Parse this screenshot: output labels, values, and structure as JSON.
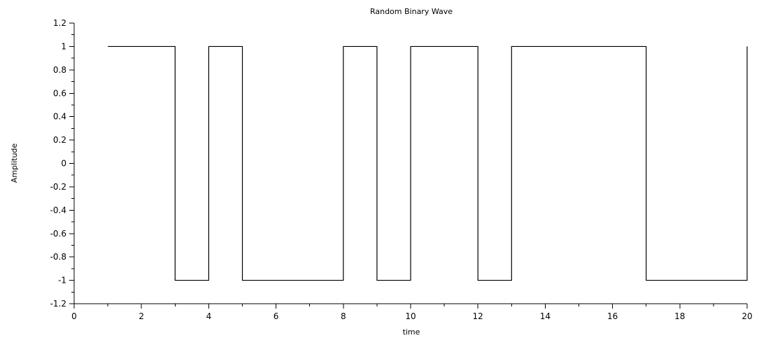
{
  "chart_data": {
    "type": "line",
    "step": true,
    "title": "Random Binary Wave",
    "xlabel": "time",
    "ylabel": "Amplitude",
    "xlim": [
      0,
      20
    ],
    "ylim": [
      -1.2,
      1.2
    ],
    "grid": false,
    "x_ticks": [
      "0",
      "2",
      "4",
      "6",
      "8",
      "10",
      "12",
      "14",
      "16",
      "18",
      "20"
    ],
    "y_ticks": [
      "1.2",
      "1",
      "0.8",
      "0.6",
      "0.4",
      "0.2",
      "0",
      "-0.2",
      "-0.4",
      "-0.6",
      "-0.8",
      "-1",
      "-1.2"
    ],
    "series": [
      {
        "color": "#000000",
        "x": [
          1,
          3,
          3,
          4,
          4,
          5,
          5,
          8,
          8,
          9,
          9,
          10,
          10,
          12,
          12,
          13,
          13,
          17,
          17,
          20,
          20
        ],
        "y": [
          1,
          1,
          -1,
          -1,
          1,
          1,
          -1,
          -1,
          1,
          1,
          -1,
          -1,
          1,
          1,
          -1,
          -1,
          1,
          1,
          -1,
          -1,
          1
        ]
      }
    ]
  }
}
